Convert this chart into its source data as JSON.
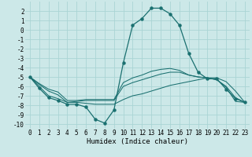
{
  "xlabel": "Humidex (Indice chaleur)",
  "bg_color": "#cce8e8",
  "line_color": "#1a7070",
  "grid_color": "#b0d8d8",
  "xlim": [
    -0.5,
    23.5
  ],
  "ylim": [
    -10.5,
    3.0
  ],
  "yticks": [
    2,
    1,
    0,
    -1,
    -2,
    -3,
    -4,
    -5,
    -6,
    -7,
    -8,
    -9,
    -10
  ],
  "xticks": [
    0,
    1,
    2,
    3,
    4,
    5,
    6,
    7,
    8,
    9,
    10,
    11,
    12,
    13,
    14,
    15,
    16,
    17,
    18,
    19,
    20,
    21,
    22,
    23
  ],
  "series": [
    {
      "x": [
        0,
        1,
        2,
        3,
        4,
        5,
        6,
        7,
        8,
        9,
        10,
        11,
        12,
        13,
        14,
        15,
        16,
        17,
        18,
        19,
        20,
        21,
        22,
        23
      ],
      "y": [
        -5.0,
        -6.2,
        -7.2,
        -7.5,
        -7.9,
        -7.9,
        -8.2,
        -9.5,
        -9.9,
        -8.5,
        -3.5,
        0.5,
        1.2,
        2.3,
        2.3,
        1.7,
        0.5,
        -2.5,
        -4.5,
        -5.2,
        -5.2,
        -6.3,
        -7.3,
        -7.7
      ],
      "marker": true
    },
    {
      "x": [
        0,
        1,
        2,
        3,
        4,
        5,
        6,
        7,
        8,
        9,
        10,
        11,
        12,
        13,
        14,
        15,
        16,
        17,
        18,
        19,
        20,
        21,
        22,
        23
      ],
      "y": [
        -5.0,
        -6.0,
        -7.0,
        -7.3,
        -7.7,
        -7.7,
        -7.8,
        -7.9,
        -7.9,
        -7.9,
        -7.4,
        -7.0,
        -6.8,
        -6.5,
        -6.2,
        -5.9,
        -5.7,
        -5.5,
        -5.3,
        -5.1,
        -5.1,
        -5.5,
        -6.5,
        -7.7
      ],
      "marker": false
    },
    {
      "x": [
        0,
        1,
        2,
        3,
        4,
        5,
        6,
        7,
        8,
        9,
        10,
        11,
        12,
        13,
        14,
        15,
        16,
        17,
        18,
        19,
        20,
        21,
        22,
        23
      ],
      "y": [
        -5.0,
        -5.8,
        -6.5,
        -6.9,
        -7.7,
        -7.6,
        -7.5,
        -7.5,
        -7.5,
        -7.5,
        -6.0,
        -5.6,
        -5.3,
        -5.0,
        -4.7,
        -4.5,
        -4.5,
        -4.8,
        -5.0,
        -5.1,
        -5.3,
        -6.0,
        -7.2,
        -7.7
      ],
      "marker": false
    },
    {
      "x": [
        0,
        1,
        2,
        3,
        4,
        5,
        6,
        7,
        8,
        9,
        10,
        11,
        12,
        13,
        14,
        15,
        16,
        17,
        18,
        19,
        20,
        21,
        22,
        23
      ],
      "y": [
        -5.0,
        -5.7,
        -6.3,
        -6.6,
        -7.5,
        -7.5,
        -7.4,
        -7.4,
        -7.4,
        -7.4,
        -5.6,
        -5.1,
        -4.8,
        -4.4,
        -4.2,
        -4.1,
        -4.3,
        -4.8,
        -5.0,
        -5.1,
        -5.3,
        -6.1,
        -7.6,
        -7.7
      ],
      "marker": false
    }
  ]
}
